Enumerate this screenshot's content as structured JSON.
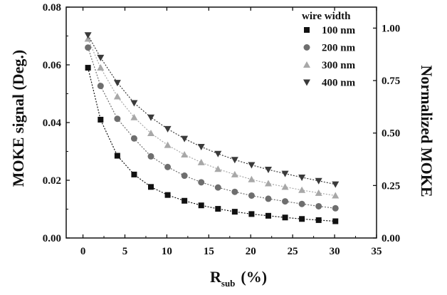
{
  "chart_data": {
    "type": "scatter",
    "title": "",
    "xlabel": "R",
    "xlabel_sub": "sub",
    "xlabel_unit": "(%)",
    "ylabel": "MOKE signal (Deg.)",
    "y2label": "Normalized MOKE",
    "xlim": [
      -2,
      35
    ],
    "ylim": [
      0,
      0.08
    ],
    "y2lim": [
      0,
      1.1
    ],
    "xticks": [
      0,
      5,
      10,
      15,
      20,
      25,
      30,
      35
    ],
    "yticks": [
      0.0,
      0.02,
      0.04,
      0.06,
      0.08
    ],
    "y2ticks": [
      0.0,
      0.25,
      0.5,
      0.75,
      1.0
    ],
    "xtick_labels": [
      "0",
      "5",
      "10",
      "15",
      "20",
      "25",
      "30",
      "35"
    ],
    "ytick_labels": [
      "0.00",
      "0.02",
      "0.04",
      "0.06",
      "0.08"
    ],
    "y2tick_labels": [
      "0.00",
      "0.25",
      "0.50",
      "0.75",
      "1.00"
    ],
    "grid": false,
    "legend_title": "wire width",
    "legend_position": "top-right",
    "x": [
      0.6,
      2.1,
      4.1,
      6.1,
      8.1,
      10.1,
      12.1,
      14.1,
      16.1,
      18.1,
      20.1,
      22.1,
      24.1,
      26.1,
      28.1,
      30.1
    ],
    "series": [
      {
        "name": "100 nm",
        "marker": "square",
        "color": "#111111",
        "x": [
          0.6,
          2.1,
          4.1,
          6.1,
          8.1,
          10.1,
          12.1,
          14.1,
          16.1,
          18.1,
          20.1,
          22.1,
          24.1,
          26.1,
          28.1,
          30.1
        ],
        "values": [
          0.059,
          0.041,
          0.0285,
          0.022,
          0.0177,
          0.0149,
          0.0129,
          0.0113,
          0.0101,
          0.0091,
          0.0083,
          0.0077,
          0.0071,
          0.0066,
          0.0062,
          0.0058
        ]
      },
      {
        "name": "200 nm",
        "marker": "circle",
        "color": "#6e6e6e",
        "x": [
          0.6,
          2.1,
          4.1,
          6.1,
          8.1,
          10.1,
          12.1,
          14.1,
          16.1,
          18.1,
          20.1,
          22.1,
          24.1,
          26.1,
          28.1,
          30.1
        ],
        "values": [
          0.066,
          0.0527,
          0.0413,
          0.0345,
          0.0283,
          0.0246,
          0.0216,
          0.0193,
          0.0175,
          0.016,
          0.0147,
          0.0136,
          0.0127,
          0.0118,
          0.011,
          0.0103
        ]
      },
      {
        "name": "300 nm",
        "marker": "triangle-up",
        "color": "#a8a8a8",
        "x": [
          0.6,
          2.1,
          4.1,
          6.1,
          8.1,
          10.1,
          12.1,
          14.1,
          16.1,
          18.1,
          20.1,
          22.1,
          24.1,
          26.1,
          28.1,
          30.1
        ],
        "values": [
          0.069,
          0.059,
          0.049,
          0.0418,
          0.0363,
          0.0322,
          0.0289,
          0.0262,
          0.0239,
          0.022,
          0.0203,
          0.0189,
          0.0177,
          0.0166,
          0.0156,
          0.0147
        ]
      },
      {
        "name": "400 nm",
        "marker": "triangle-down",
        "color": "#3a3a3a",
        "x": [
          0.6,
          2.1,
          4.1,
          6.1,
          8.1,
          10.1,
          12.1,
          14.1,
          16.1,
          18.1,
          20.1,
          22.1,
          24.1,
          26.1,
          28.1,
          30.1
        ],
        "values": [
          0.0703,
          0.0625,
          0.0538,
          0.0468,
          0.0418,
          0.0378,
          0.0344,
          0.0316,
          0.0292,
          0.0271,
          0.0253,
          0.0237,
          0.0223,
          0.021,
          0.0198,
          0.0186
        ]
      }
    ]
  }
}
